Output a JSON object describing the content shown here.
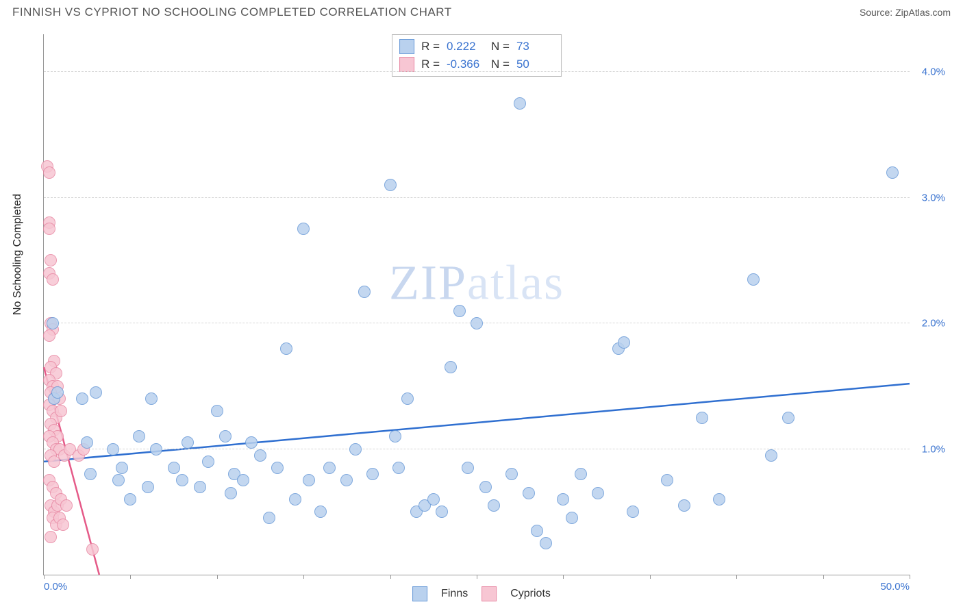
{
  "header": {
    "title": "FINNISH VS CYPRIOT NO SCHOOLING COMPLETED CORRELATION CHART",
    "source_prefix": "Source: ",
    "source": "ZipAtlas.com"
  },
  "chart": {
    "type": "scatter",
    "y_axis_title": "No Schooling Completed",
    "xlim": [
      0,
      50
    ],
    "ylim": [
      0,
      4.3
    ],
    "x_ticks": [
      0,
      5,
      10,
      15,
      20,
      25,
      30,
      35,
      40,
      45,
      50
    ],
    "x_tick_labels_shown": {
      "0": "0.0%",
      "50": "50.0%"
    },
    "y_gridlines": [
      1,
      2,
      3,
      4
    ],
    "y_tick_labels": {
      "1": "1.0%",
      "2": "2.0%",
      "3": "3.0%",
      "4": "4.0%"
    },
    "background_color": "#ffffff",
    "grid_color": "#d5d5d5",
    "axis_color": "#999999",
    "label_color": "#3b74d0",
    "marker_radius": 9,
    "marker_stroke_width": 1.5,
    "watermark": "ZIPatlas",
    "series": [
      {
        "name": "Finns",
        "fill_color": "#b9d1ee",
        "stroke_color": "#6a9bd8",
        "line_color": "#2f6fd0",
        "r_value": "0.222",
        "n_value": "73",
        "trend": {
          "x1": 0,
          "y1": 0.9,
          "x2": 50,
          "y2": 1.52
        },
        "points": [
          [
            0.5,
            2.0
          ],
          [
            0.6,
            1.4
          ],
          [
            0.8,
            1.45
          ],
          [
            2.2,
            1.4
          ],
          [
            2.5,
            1.05
          ],
          [
            2.7,
            0.8
          ],
          [
            3.0,
            1.45
          ],
          [
            4.0,
            1.0
          ],
          [
            4.3,
            0.75
          ],
          [
            4.5,
            0.85
          ],
          [
            5.0,
            0.6
          ],
          [
            5.5,
            1.1
          ],
          [
            6.0,
            0.7
          ],
          [
            6.2,
            1.4
          ],
          [
            6.5,
            1.0
          ],
          [
            7.5,
            0.85
          ],
          [
            8.0,
            0.75
          ],
          [
            8.3,
            1.05
          ],
          [
            9.0,
            0.7
          ],
          [
            9.5,
            0.9
          ],
          [
            10.0,
            1.3
          ],
          [
            10.5,
            1.1
          ],
          [
            10.8,
            0.65
          ],
          [
            11.0,
            0.8
          ],
          [
            11.5,
            0.75
          ],
          [
            12.0,
            1.05
          ],
          [
            12.5,
            0.95
          ],
          [
            13.0,
            0.45
          ],
          [
            13.5,
            0.85
          ],
          [
            14.0,
            1.8
          ],
          [
            14.5,
            0.6
          ],
          [
            15.0,
            2.75
          ],
          [
            15.3,
            0.75
          ],
          [
            16.0,
            0.5
          ],
          [
            16.5,
            0.85
          ],
          [
            17.5,
            0.75
          ],
          [
            18.0,
            1.0
          ],
          [
            18.5,
            2.25
          ],
          [
            19.0,
            0.8
          ],
          [
            20.0,
            3.1
          ],
          [
            20.3,
            1.1
          ],
          [
            20.5,
            0.85
          ],
          [
            21.0,
            1.4
          ],
          [
            21.5,
            0.5
          ],
          [
            22.0,
            0.55
          ],
          [
            22.5,
            0.6
          ],
          [
            23.0,
            0.5
          ],
          [
            23.5,
            1.65
          ],
          [
            24.0,
            2.1
          ],
          [
            24.5,
            0.85
          ],
          [
            25.0,
            2.0
          ],
          [
            25.5,
            0.7
          ],
          [
            26.0,
            0.55
          ],
          [
            27.0,
            0.8
          ],
          [
            27.5,
            3.75
          ],
          [
            28.0,
            0.65
          ],
          [
            28.5,
            0.35
          ],
          [
            29.0,
            0.25
          ],
          [
            30.0,
            0.6
          ],
          [
            30.5,
            0.45
          ],
          [
            31.0,
            0.8
          ],
          [
            32.0,
            0.65
          ],
          [
            33.2,
            1.8
          ],
          [
            33.5,
            1.85
          ],
          [
            34.0,
            0.5
          ],
          [
            36.0,
            0.75
          ],
          [
            37.0,
            0.55
          ],
          [
            38.0,
            1.25
          ],
          [
            39.0,
            0.6
          ],
          [
            41.0,
            2.35
          ],
          [
            42.0,
            0.95
          ],
          [
            43.0,
            1.25
          ],
          [
            49.0,
            3.2
          ]
        ]
      },
      {
        "name": "Cypriots",
        "fill_color": "#f7c6d3",
        "stroke_color": "#e88aa5",
        "line_color": "#e55a88",
        "r_value": "-0.366",
        "n_value": "50",
        "trend": {
          "x1": 0,
          "y1": 1.65,
          "x2": 3.2,
          "y2": 0
        },
        "points": [
          [
            0.2,
            3.25
          ],
          [
            0.3,
            3.2
          ],
          [
            0.3,
            2.8
          ],
          [
            0.3,
            2.75
          ],
          [
            0.4,
            2.5
          ],
          [
            0.3,
            2.4
          ],
          [
            0.5,
            2.35
          ],
          [
            0.4,
            2.0
          ],
          [
            0.5,
            1.95
          ],
          [
            0.3,
            1.9
          ],
          [
            0.6,
            1.7
          ],
          [
            0.4,
            1.65
          ],
          [
            0.7,
            1.6
          ],
          [
            0.3,
            1.55
          ],
          [
            0.5,
            1.5
          ],
          [
            0.8,
            1.5
          ],
          [
            0.4,
            1.45
          ],
          [
            0.6,
            1.4
          ],
          [
            0.9,
            1.4
          ],
          [
            0.3,
            1.35
          ],
          [
            0.5,
            1.3
          ],
          [
            0.7,
            1.25
          ],
          [
            1.0,
            1.3
          ],
          [
            0.4,
            1.2
          ],
          [
            0.6,
            1.15
          ],
          [
            0.8,
            1.1
          ],
          [
            0.3,
            1.1
          ],
          [
            0.5,
            1.05
          ],
          [
            0.7,
            1.0
          ],
          [
            0.9,
            1.0
          ],
          [
            0.4,
            0.95
          ],
          [
            0.6,
            0.9
          ],
          [
            1.2,
            0.95
          ],
          [
            1.5,
            1.0
          ],
          [
            0.3,
            0.75
          ],
          [
            0.5,
            0.7
          ],
          [
            0.7,
            0.65
          ],
          [
            0.4,
            0.55
          ],
          [
            0.6,
            0.5
          ],
          [
            0.8,
            0.55
          ],
          [
            1.0,
            0.6
          ],
          [
            1.3,
            0.55
          ],
          [
            0.5,
            0.45
          ],
          [
            0.7,
            0.4
          ],
          [
            0.9,
            0.45
          ],
          [
            1.1,
            0.4
          ],
          [
            0.4,
            0.3
          ],
          [
            2.0,
            0.95
          ],
          [
            2.3,
            1.0
          ],
          [
            2.8,
            0.2
          ]
        ]
      }
    ],
    "legend": {
      "series1_label": "Finns",
      "series2_label": "Cypriots"
    },
    "statbox": {
      "r_label": "R =",
      "n_label": "N ="
    }
  }
}
